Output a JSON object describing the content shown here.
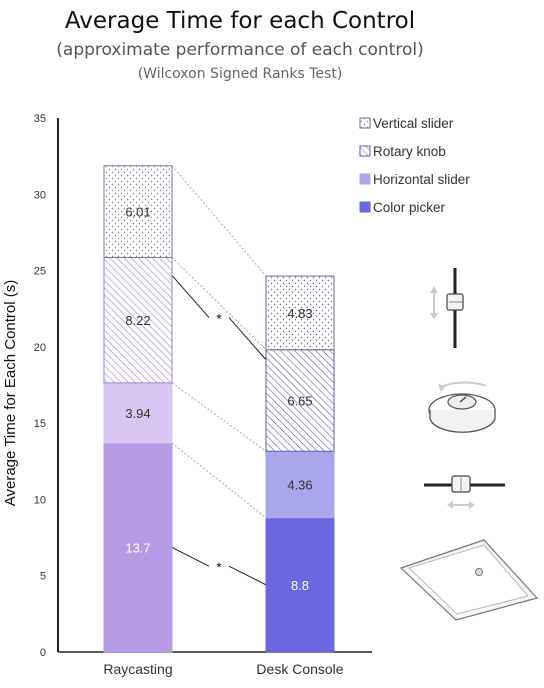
{
  "title": "Average Time for each Control",
  "subtitle": "(approximate performance of each control)",
  "note": "(Wilcoxon Signed Ranks Test)",
  "chart_data": {
    "type": "bar",
    "stacked": true,
    "categories": [
      "Raycasting",
      "Desk Console"
    ],
    "series": [
      {
        "name": "Color picker",
        "values": [
          13.7,
          8.8
        ],
        "colors": [
          "#b79ae4",
          "#6a67e0"
        ],
        "pattern": "solid",
        "label_color": "#ffffff"
      },
      {
        "name": "Horizontal slider",
        "values": [
          3.94,
          4.36
        ],
        "colors": [
          "#d9c6f3",
          "#a9a6ec"
        ],
        "pattern": "solid",
        "label_color": "#333333"
      },
      {
        "name": "Rotary knob",
        "values": [
          8.22,
          6.65
        ],
        "colors": [
          "#9c7fd8",
          "#5f5bb8"
        ],
        "pattern": "hatch",
        "label_color": "#333333"
      },
      {
        "name": "Vertical slider",
        "values": [
          6.01,
          4.83
        ],
        "colors": [
          "#7a7a95",
          "#6b6b8a"
        ],
        "pattern": "dots",
        "label_color": "#333333"
      }
    ],
    "data_labels": [
      [
        "13.7",
        "3.94",
        "8.22",
        "6.01"
      ],
      [
        "8.8",
        "4.36",
        "6.65",
        "4.83"
      ]
    ],
    "ylabel": "Average Time for Each Control (s)",
    "ylim": [
      0,
      35
    ],
    "yticks": [
      0,
      5,
      10,
      15,
      20,
      25,
      30,
      35
    ],
    "legend_order": [
      "Vertical slider",
      "Rotary knob",
      "Horizontal slider",
      "Color picker"
    ],
    "legend_position": "top-right",
    "significance_marker": "*",
    "grid": false
  },
  "legend_icons": [
    "vertical-slider-icon",
    "rotary-knob-icon",
    "horizontal-slider-icon",
    "color-picker-icon"
  ]
}
